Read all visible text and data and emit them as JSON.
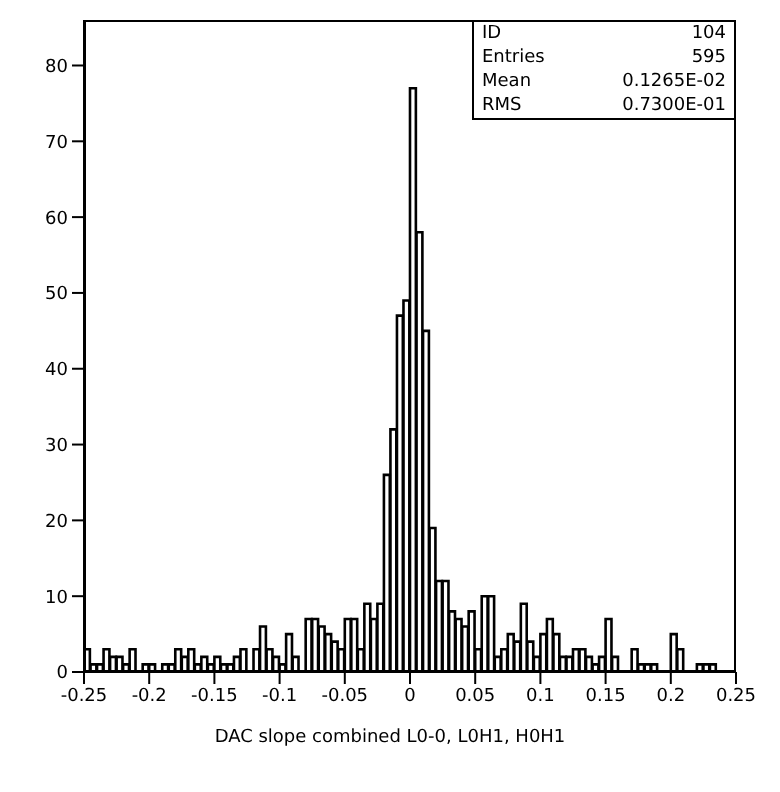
{
  "chart_data": {
    "type": "histogram",
    "xlabel": "DAC slope combined L0-0, L0H1, H0H1",
    "bins": [
      -0.25,
      -0.245,
      -0.24,
      -0.235,
      -0.23,
      -0.225,
      -0.22,
      -0.215,
      -0.21,
      -0.205,
      -0.2,
      -0.195,
      -0.19,
      -0.185,
      -0.18,
      -0.175,
      -0.17,
      -0.165,
      -0.16,
      -0.155,
      -0.15,
      -0.145,
      -0.14,
      -0.135,
      -0.13,
      -0.125,
      -0.12,
      -0.115,
      -0.11,
      -0.105,
      -0.1,
      -0.095,
      -0.09,
      -0.085,
      -0.08,
      -0.075,
      -0.07,
      -0.065,
      -0.06,
      -0.055,
      -0.05,
      -0.045,
      -0.04,
      -0.035,
      -0.03,
      -0.025,
      -0.02,
      -0.015,
      -0.01,
      -0.005,
      0,
      0.005,
      0.01,
      0.015,
      0.02,
      0.025,
      0.03,
      0.035,
      0.04,
      0.045,
      0.05,
      0.055,
      0.06,
      0.065,
      0.07,
      0.075,
      0.08,
      0.085,
      0.09,
      0.095,
      0.1,
      0.105,
      0.11,
      0.115,
      0.12,
      0.125,
      0.13,
      0.135,
      0.14,
      0.145,
      0.15,
      0.155,
      0.16,
      0.165,
      0.17,
      0.175,
      0.18,
      0.185,
      0.19,
      0.195,
      0.2,
      0.205,
      0.21,
      0.215,
      0.22,
      0.225,
      0.23,
      0.235,
      0.24,
      0.245,
      0.25
    ],
    "values": [
      3,
      1,
      1,
      3,
      2,
      2,
      1,
      3,
      0,
      1,
      1,
      0,
      1,
      1,
      3,
      2,
      3,
      1,
      2,
      1,
      2,
      1,
      1,
      2,
      3,
      0,
      3,
      6,
      3,
      2,
      1,
      5,
      2,
      0,
      7,
      7,
      6,
      5,
      4,
      3,
      7,
      7,
      3,
      9,
      7,
      9,
      26,
      32,
      47,
      49,
      77,
      58,
      45,
      19,
      12,
      12,
      8,
      7,
      6,
      8,
      3,
      10,
      10,
      2,
      3,
      5,
      4,
      9,
      4,
      2,
      5,
      7,
      5,
      2,
      2,
      3,
      3,
      2,
      1,
      2,
      7,
      2,
      0,
      0,
      3,
      1,
      1,
      1,
      0,
      0,
      5,
      3,
      0,
      0,
      1,
      1,
      1,
      0,
      0,
      0
    ],
    "color": "#000000",
    "xlim": [
      -0.25,
      0.25
    ],
    "xticks": [
      -0.25,
      -0.2,
      -0.15,
      -0.1,
      -0.05,
      0,
      0.05,
      0.1,
      0.15,
      0.2,
      0.25
    ],
    "ylim": [
      0,
      86
    ],
    "yticks": [
      0,
      10,
      20,
      30,
      40,
      50,
      60,
      70,
      80
    ],
    "annotations": [
      "ID",
      "104",
      "Entries",
      "595",
      "Mean",
      "0.1265E-02",
      "RMS",
      "0.7300E-01"
    ]
  }
}
